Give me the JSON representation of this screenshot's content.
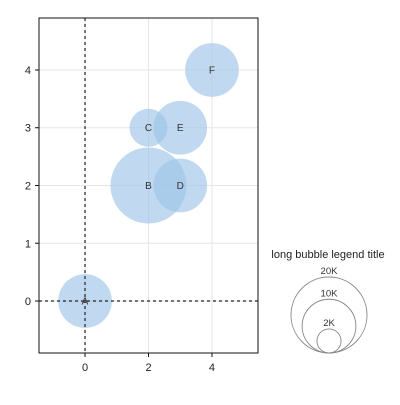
{
  "chart_data": {
    "type": "scatter",
    "subtype": "bubble",
    "title": "",
    "xlabel": "",
    "ylabel": "",
    "xlim": [
      -1.45,
      5.45
    ],
    "ylim": [
      -0.9,
      4.9
    ],
    "xticks": [
      0,
      2,
      4
    ],
    "yticks": [
      0,
      1,
      2,
      3,
      4
    ],
    "grid": true,
    "reference_lines": {
      "x": 0,
      "y": 0,
      "style": "dashed"
    },
    "bubble_color": "#9ec5e8",
    "points": [
      {
        "label": "A",
        "x": 0,
        "y": 0,
        "size": 10000
      },
      {
        "label": "B",
        "x": 2,
        "y": 2,
        "size": 20000
      },
      {
        "label": "C",
        "x": 2,
        "y": 3,
        "size": 5000
      },
      {
        "label": "D",
        "x": 3,
        "y": 2,
        "size": 10000
      },
      {
        "label": "E",
        "x": 3,
        "y": 3,
        "size": 10000
      },
      {
        "label": "F",
        "x": 4,
        "y": 4,
        "size": 10000
      }
    ],
    "size_legend": {
      "title": "long bubble legend title",
      "placement": "right",
      "entries": [
        {
          "label": "20K",
          "value": 20000
        },
        {
          "label": "10K",
          "value": 10000
        },
        {
          "label": "2K",
          "value": 2000
        }
      ]
    }
  }
}
